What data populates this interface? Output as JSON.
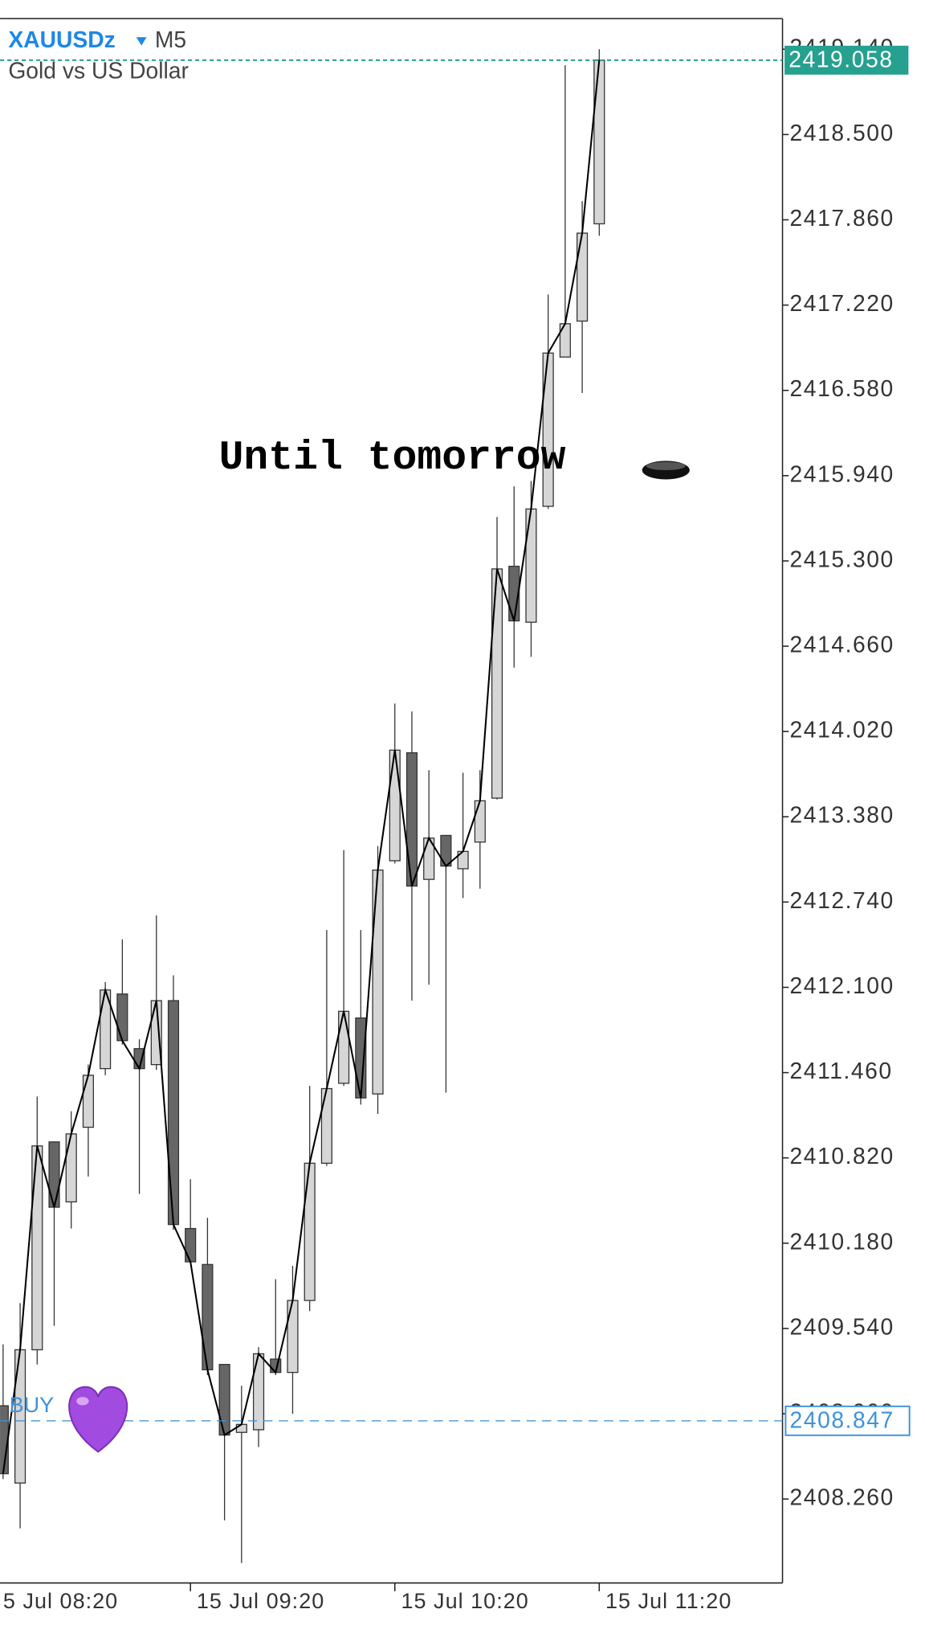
{
  "chart_data": {
    "type": "candlestick",
    "symbol": "XAUUSDz",
    "timeframe": "M5",
    "title": "Gold vs US Dollar",
    "annotation": "Until tomorrow",
    "open": [
      2408.96,
      2408.38,
      2409.38,
      2410.94,
      2410.49,
      2411.05,
      2411.49,
      2412.05,
      2411.64,
      2411.52,
      2412.0,
      2410.29,
      2410.02,
      2409.27,
      2408.76,
      2408.78,
      2409.31,
      2409.21,
      2409.75,
      2410.78,
      2411.38,
      2411.87,
      2411.3,
      2413.05,
      2413.86,
      2412.91,
      2413.24,
      2412.99,
      2413.19,
      2413.52,
      2415.26,
      2414.84,
      2415.71,
      2416.83,
      2417.1,
      2417.83
    ],
    "high": [
      2409.42,
      2409.73,
      2411.28,
      2410.94,
      2411.17,
      2411.52,
      2412.14,
      2412.46,
      2411.71,
      2412.64,
      2412.19,
      2410.66,
      2410.37,
      2409.27,
      2409.11,
      2409.4,
      2409.91,
      2410.01,
      2411.36,
      2412.53,
      2413.13,
      2412.53,
      2413.16,
      2414.23,
      2414.17,
      2413.73,
      2413.24,
      2413.71,
      2413.73,
      2415.63,
      2415.86,
      2415.9,
      2417.3,
      2419.02,
      2418.0,
      2419.14
    ],
    "low": [
      2408.41,
      2408.04,
      2409.27,
      2409.56,
      2410.29,
      2410.68,
      2411.44,
      2411.67,
      2410.55,
      2411.48,
      2410.28,
      2410.03,
      2409.19,
      2408.1,
      2407.78,
      2408.65,
      2409.19,
      2408.9,
      2409.67,
      2410.76,
      2411.36,
      2411.22,
      2411.15,
      2413.03,
      2412.0,
      2412.12,
      2411.31,
      2412.77,
      2412.84,
      2413.51,
      2414.5,
      2414.58,
      2415.69,
      2416.83,
      2416.56,
      2417.74
    ],
    "close": [
      2408.45,
      2409.38,
      2410.91,
      2410.45,
      2411.0,
      2411.44,
      2412.08,
      2411.7,
      2411.49,
      2412.0,
      2410.32,
      2410.04,
      2409.23,
      2408.74,
      2408.82,
      2409.35,
      2409.21,
      2409.75,
      2410.78,
      2411.34,
      2411.92,
      2411.27,
      2412.98,
      2413.88,
      2412.86,
      2413.22,
      2413.01,
      2413.12,
      2413.5,
      2415.24,
      2414.85,
      2415.69,
      2416.86,
      2417.08,
      2417.76,
      2419.058
    ],
    "up_color": "#d6d6d6",
    "down_color": "#666666",
    "line_color": "#000000",
    "ylim": [
      2407.63,
      2419.37
    ],
    "yticks": [
      {
        "value": 2408.26,
        "label": "2408.260"
      },
      {
        "value": 2408.9,
        "label": "2408.900"
      },
      {
        "value": 2409.54,
        "label": "2409.540"
      },
      {
        "value": 2410.18,
        "label": "2410.180"
      },
      {
        "value": 2410.82,
        "label": "2410.820"
      },
      {
        "value": 2411.46,
        "label": "2411.460"
      },
      {
        "value": 2412.1,
        "label": "2412.100"
      },
      {
        "value": 2412.74,
        "label": "2412.740"
      },
      {
        "value": 2413.38,
        "label": "2413.380"
      },
      {
        "value": 2414.02,
        "label": "2414.020"
      },
      {
        "value": 2414.66,
        "label": "2414.660"
      },
      {
        "value": 2415.3,
        "label": "2415.300"
      },
      {
        "value": 2415.94,
        "label": "2415.940"
      },
      {
        "value": 2416.58,
        "label": "2416.580"
      },
      {
        "value": 2417.22,
        "label": "2417.220"
      },
      {
        "value": 2417.86,
        "label": "2417.860"
      },
      {
        "value": 2418.5,
        "label": "2418.500"
      },
      {
        "value": 2419.14,
        "label": "2419.140"
      }
    ],
    "xlim": [
      -0.18,
      45.76
    ],
    "xticks": [
      {
        "value": -1,
        "label": "5 Jul 08:20"
      },
      {
        "value": 11,
        "label": "15 Jul 09:20"
      },
      {
        "value": 23,
        "label": "15 Jul 10:20"
      },
      {
        "value": 35,
        "label": "15 Jul 11:20"
      }
    ],
    "current_price": {
      "value": 2419.058,
      "color": "#26a08f"
    },
    "buy_line": {
      "label": "BUY",
      "value": 2408.847,
      "color": "#3d92db"
    }
  }
}
